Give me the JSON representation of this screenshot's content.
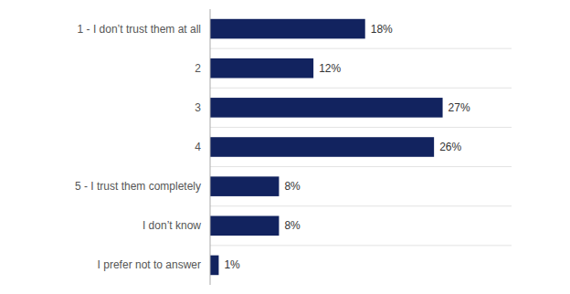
{
  "chart_data": {
    "type": "bar",
    "orientation": "horizontal",
    "categories": [
      "1 - I don’t trust them at all",
      "2",
      "3",
      "4",
      "5 - I trust them completely",
      "I don’t know",
      "I prefer not to answer"
    ],
    "values": [
      18,
      12,
      27,
      26,
      8,
      8,
      1
    ],
    "value_labels": [
      "18%",
      "12%",
      "27%",
      "26%",
      "8%",
      "8%",
      "1%"
    ],
    "color": "#12235f",
    "xlim": [
      0,
      35
    ],
    "data_labels": true,
    "tick_labels": "y"
  }
}
